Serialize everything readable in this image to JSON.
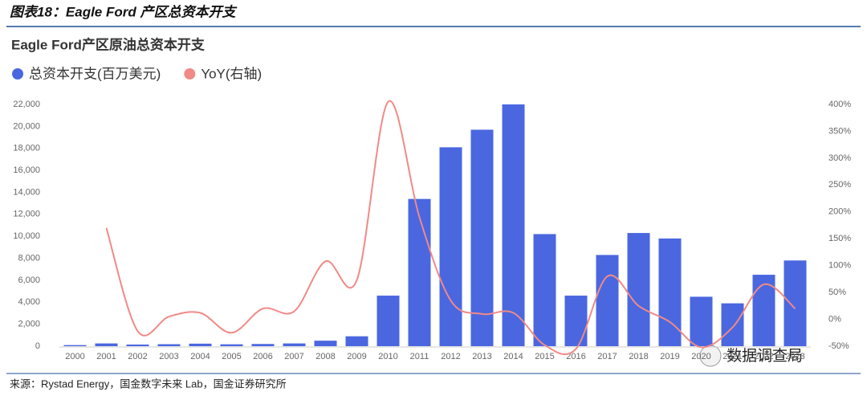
{
  "header": {
    "title": "图表18：Eagle Ford 产区总资本开支"
  },
  "chart_data": {
    "type": "bar",
    "title": "Eagle Ford产区原油总资本开支",
    "categories": [
      "2000",
      "2001",
      "2002",
      "2003",
      "2004",
      "2005",
      "2006",
      "2007",
      "2008",
      "2009",
      "2010",
      "2011",
      "2012",
      "2013",
      "2014",
      "2015",
      "2016",
      "2017",
      "2018",
      "2019",
      "2020",
      "2021",
      "2022",
      "2023"
    ],
    "series": [
      {
        "name": "总资本开支(百万美元)",
        "color": "#4a67e0",
        "type": "bar",
        "values": [
          100,
          250,
          150,
          180,
          230,
          170,
          200,
          250,
          500,
          900,
          4600,
          13400,
          18100,
          19700,
          22000,
          10200,
          4600,
          8300,
          10300,
          9800,
          4500,
          3900,
          6500,
          7800
        ]
      },
      {
        "name": "YoY(右轴)",
        "color": "#f08a86",
        "type": "line",
        "axis": "y2",
        "values": [
          null,
          170,
          -22,
          5,
          12,
          -25,
          20,
          15,
          108,
          73,
          405,
          190,
          35,
          10,
          12,
          -48,
          -55,
          80,
          25,
          -5,
          -52,
          -15,
          65,
          20
        ]
      }
    ],
    "ylim": [
      0,
      22000
    ],
    "yticks": [
      0,
      {
        "value": 2000,
        "label": "2,000"
      },
      {
        "value": 4000,
        "label": "4,000"
      },
      {
        "value": 6000,
        "label": "6,000"
      },
      {
        "value": 8000,
        "label": "8,000"
      },
      {
        "value": 10000,
        "label": "10,000"
      },
      {
        "value": 12000,
        "label": "12,000"
      },
      {
        "value": 14000,
        "label": "14,000"
      },
      {
        "value": 16000,
        "label": "16,000"
      },
      {
        "value": 18000,
        "label": "18,000"
      },
      {
        "value": 20000,
        "label": "20,000"
      },
      {
        "value": 22000,
        "label": "22,000"
      }
    ],
    "y2lim": [
      -50,
      400
    ],
    "y2ticks": [
      {
        "value": -50,
        "label": "-50%"
      },
      {
        "value": 0,
        "label": "0%"
      },
      {
        "value": 50,
        "label": "50%"
      },
      {
        "value": 100,
        "label": "100%"
      },
      {
        "value": 150,
        "label": "150%"
      },
      {
        "value": 200,
        "label": "200%"
      },
      {
        "value": 250,
        "label": "250%"
      },
      {
        "value": 300,
        "label": "300%"
      },
      {
        "value": 350,
        "label": "350%"
      },
      {
        "value": 400,
        "label": "400%"
      }
    ]
  },
  "footer": {
    "source": "来源：Rystad Energy，国金数字未来 Lab，国金证券研究所",
    "logo": "数据调查局"
  }
}
